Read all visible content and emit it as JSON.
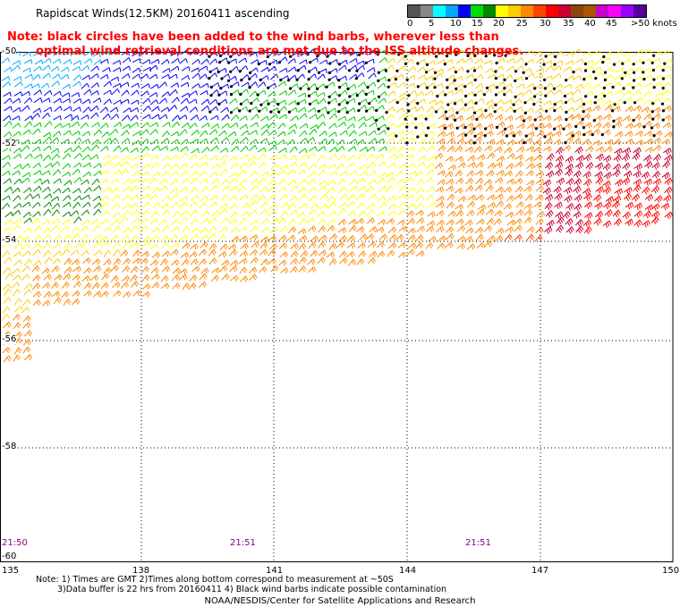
{
  "title": "Rapidscat Winds(12.5KM) 20160411 ascending",
  "note": {
    "line1": "Note: black circles have been added to the wind barbs, wherever less than",
    "line2": "optimal wind retrieval conditions are met due to the ISS altitude changes."
  },
  "legend": {
    "colors": [
      "#555555",
      "#888888",
      "#00ffff",
      "#00aaff",
      "#0000ff",
      "#00dd00",
      "#008800",
      "#ffff00",
      "#ffcc00",
      "#ff8800",
      "#ff4400",
      "#ff0000",
      "#cc0033",
      "#8b4513",
      "#aa5500",
      "#cc00cc",
      "#ff00ff",
      "#9900ff",
      "#550099"
    ],
    "labels": [
      "0",
      "5",
      "10",
      "15",
      "20",
      "25",
      "30",
      "35",
      "40",
      "45",
      ">50 knots"
    ]
  },
  "lat_labels": [
    "-50",
    "-52",
    "-54",
    "-56",
    "-58",
    "-60"
  ],
  "lon_labels": [
    "135",
    "138",
    "141",
    "144",
    "147",
    "150"
  ],
  "time_labels": [
    "21:50",
    "21:51",
    "21:51"
  ],
  "footnote": {
    "line1": "Note: 1) Times are GMT 2)Times along bottom correspond to measurement at ~50S",
    "line2": "3)Data buffer is 22 hrs from 20160411 4) Black wind barbs indicate possible contamination"
  },
  "credit": "NOAA/NESDIS/Center for Satellite Applications and Research",
  "colors": {
    "light_blue": "#00aaff",
    "blue": "#0000ff",
    "green": "#00cc00",
    "dark_green": "#008800",
    "yellow": "#ffff00",
    "gold": "#ffcc00",
    "orange": "#ff8800",
    "red_orange": "#ff4400",
    "red": "#ff0000",
    "crimson": "#cc0033",
    "magenta": "#ff00ff",
    "brown": "#8b4513",
    "note_red": "#ff0000",
    "time_purple": "#8b008b"
  }
}
